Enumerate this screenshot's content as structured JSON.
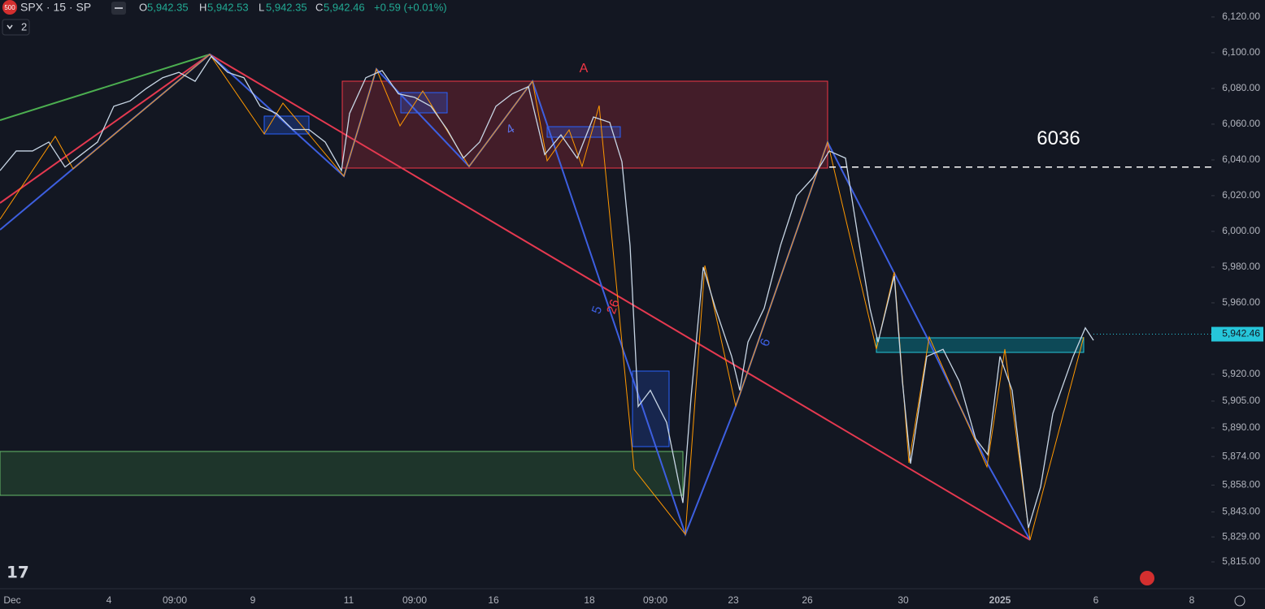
{
  "header": {
    "badge": "500",
    "symbol": "SPX · 15 · SP",
    "o_label": "O",
    "o": "5,942.35",
    "h_label": "H",
    "h": "5,942.53",
    "l_label": "L",
    "l": "5,942.35",
    "c_label": "C",
    "c": "5,942.46",
    "change": "+0.59 (+0.01%)",
    "indicators": "2"
  },
  "chart_data": {
    "type": "line",
    "series": [
      {
        "name": "SPX",
        "color": "#c8d6e5",
        "values": [
          6034,
          6045,
          6045,
          6050,
          6036,
          6043,
          6050,
          6070,
          6073,
          6080,
          6086,
          6089,
          6084,
          6098,
          6089,
          6086,
          6070,
          6066,
          6057,
          6057,
          6050,
          6034,
          6066,
          6086,
          6090,
          6077,
          6075,
          6070,
          6057,
          6041,
          6050,
          6070,
          6077,
          6081,
          6043,
          6054,
          6041,
          6064,
          6061,
          6039,
          5992,
          5902,
          5911,
          5893,
          5848,
          5907,
          5980,
          5957,
          5930,
          5911,
          5938,
          5957,
          5992,
          6020,
          6030,
          6045,
          6041,
          5998,
          5957,
          5938,
          5975,
          5916,
          5870,
          5930,
          5934,
          5916,
          5884,
          5875,
          5930,
          5911,
          5834,
          5857,
          5898,
          5930,
          5946,
          5939
        ]
      }
    ],
    "xtick_labels": [
      "Dec",
      "4",
      "09:00",
      "9",
      "11",
      "09:00",
      "16",
      "18",
      "09:00",
      "23",
      "26",
      "30",
      "2025",
      "6",
      "8"
    ],
    "ylim": [
      5800,
      6129.5
    ],
    "yticks": [
      {
        "value": 6120,
        "label": "6,120.00"
      },
      {
        "value": 6100,
        "label": "6,100.00"
      },
      {
        "value": 6080,
        "label": "6,080.00"
      },
      {
        "value": 6060,
        "label": "6,060.00"
      },
      {
        "value": 6040,
        "label": "6,040.00"
      },
      {
        "value": 6020,
        "label": "6,020.00"
      },
      {
        "value": 6000,
        "label": "6,000.00"
      },
      {
        "value": 5980,
        "label": "5,980.00"
      },
      {
        "value": 5960,
        "label": "5,960.00"
      },
      {
        "value": 5920,
        "label": "5,920.00"
      },
      {
        "value": 5905,
        "label": "5,905.00"
      },
      {
        "value": 5890,
        "label": "5,890.00"
      },
      {
        "value": 5874,
        "label": "5,874.00"
      },
      {
        "value": 5858,
        "label": "5,858.00"
      },
      {
        "value": 5843,
        "label": "5,843.00"
      },
      {
        "value": 5829,
        "label": "5,829.00"
      },
      {
        "value": 5815,
        "label": "5,815.00"
      }
    ],
    "last_price": {
      "value": 5942.46,
      "label": "5,942.46"
    },
    "level": 6036,
    "annotations": [
      "A",
      "4",
      "5",
      "26",
      "6"
    ]
  }
}
